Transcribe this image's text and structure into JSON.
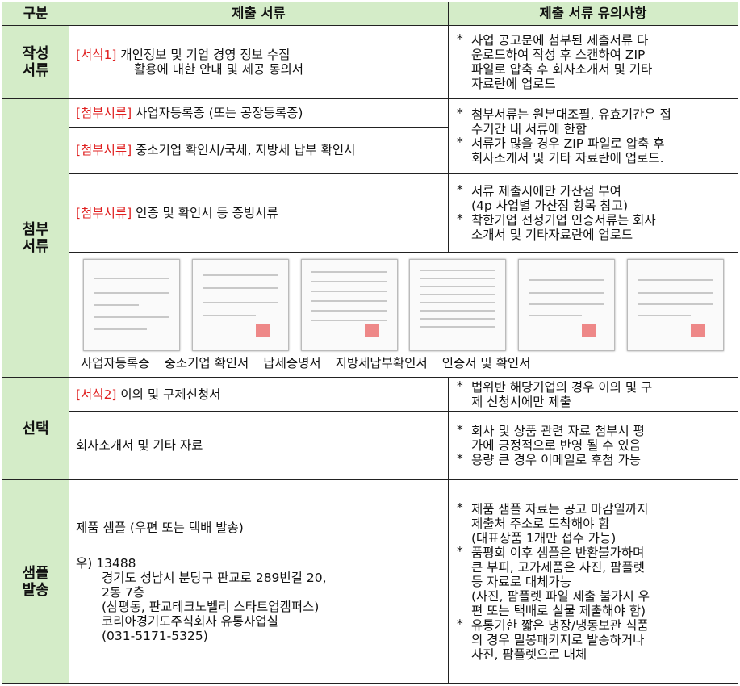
{
  "header": {
    "category": "구분",
    "documents": "제출 서류",
    "notes": "제출 서류 유의사항"
  },
  "sections": [
    {
      "category": [
        "작성",
        "서류"
      ]
    },
    {
      "category": [
        "첨부",
        "서류"
      ]
    },
    {
      "category": [
        "선택"
      ]
    },
    {
      "category": [
        "샘플",
        "발송"
      ]
    }
  ],
  "documents": [
    {
      "tag": "[서식1]",
      "lines": [
        "개인정보 및 기업 경영 정보 수집",
        "활용에 대한 안내 및 제공 동의서"
      ]
    },
    {
      "tag": "[첨부서류]",
      "lines": [
        "사업자등록증 (또는 공장등록증)"
      ]
    },
    {
      "tag": "[첨부서류]",
      "lines": [
        "중소기업 확인서/국세, 지방세 납부 확인서"
      ]
    },
    {
      "tag": "[첨부서류]",
      "lines": [
        "인증 및 확인서 등 증빙서류"
      ]
    },
    {
      "tag": "[서식2]",
      "lines": [
        "이의 및 구제신청서"
      ]
    },
    {
      "lines": [
        "회사소개서 및 기타 자료"
      ]
    },
    {
      "lines": [
        "제품 샘플 (우편 또는 택배 발송)",
        "우) 13488",
        "경기도 성남시 분당구 판교로 289번길 20,",
        "2동 7층",
        "(삼평동, 판교테크노벨리 스타트업캠퍼스)",
        "코리아경기도주식회사 유통사업실",
        "(031-5171-5325)"
      ]
    }
  ],
  "captions": [
    "사업자등록증",
    "중소기업 확인서",
    "납세증명서",
    "지방세납부확인서",
    "인증서 및 확인서"
  ],
  "notes": [
    {
      "items": [
        {
          "bullet": "*",
          "lines": [
            "사업 공고문에 첨부된 제출서류 다",
            "운로드하여 작성 후 스캔하여 ZIP",
            "파일로 압축 후 회사소개서 및 기타",
            "자료란에 업로드"
          ]
        }
      ]
    },
    {
      "items": [
        {
          "bullet": "*",
          "lines": [
            "첨부서류는 원본대조필, 유효기간은 접",
            "수기간 내 서류에 한함"
          ]
        },
        {
          "bullet": "*",
          "lines": [
            "서류가 많을 경우 ZIP 파일로 압축 후",
            "회사소개서 및 기타 자료란에 업로드."
          ]
        }
      ]
    },
    {
      "items": [
        {
          "bullet": "*",
          "lines": [
            "서류 제출시에만 가산점 부여",
            "(4p 사업별 가산점 항목 참고)"
          ]
        },
        {
          "bullet": "*",
          "lines": [
            "착한기업 선정기업 인증서류는 회사",
            "소개서 및 기타자료란에 업로드"
          ]
        }
      ]
    },
    {
      "items": [
        {
          "bullet": "*",
          "lines": [
            "법위반 해당기업의 경우 이의 및 구",
            "제 신청시에만 제출"
          ]
        }
      ]
    },
    {
      "items": [
        {
          "bullet": "*",
          "lines": [
            "회사 및 상품 관련 자료 첨부시 평",
            "가에 긍정적으로 반영 될 수 있음"
          ]
        },
        {
          "bullet": "*",
          "lines": [
            "용량 큰 경우 이메일로 후첨 가능"
          ]
        }
      ]
    },
    {
      "items": [
        {
          "bullet": "*",
          "lines": [
            "제품 샘플 자료는 공고 마감일까지",
            "제출처 주소로 도착해야 함",
            "(대표상품 1개만 접수 가능)"
          ]
        },
        {
          "bullet": "*",
          "lines": [
            "품평회 이후 샘플은 반환불가하며",
            "큰 부피, 고가제품은 사진, 팜플렛",
            "등 자료로 대체가능",
            "(사진, 팜플렛 파일 제출 불가시 우",
            "편 또는 택배로 실물 제출해야 함)"
          ]
        },
        {
          "bullet": "*",
          "lines": [
            "유통기한 짧은 냉장/냉동보관 식품",
            "의 경우 밀봉패키지로 발송하거나",
            "사진, 팜플렛으로 대체"
          ]
        }
      ]
    }
  ]
}
